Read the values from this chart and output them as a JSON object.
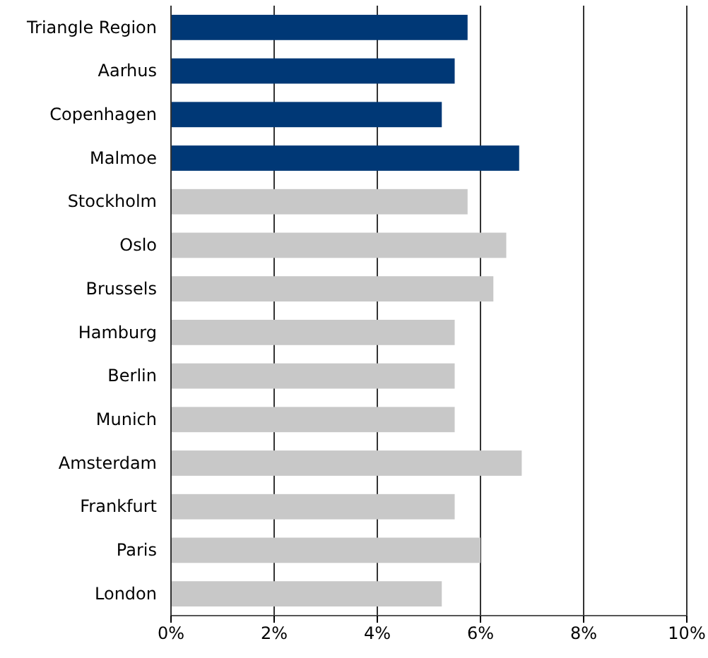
{
  "chart_data": {
    "type": "bar",
    "orientation": "horizontal",
    "categories": [
      "Triangle Region",
      "Aarhus",
      "Copenhagen",
      "Malmoe",
      "Stockholm",
      "Oslo",
      "Brussels",
      "Hamburg",
      "Berlin",
      "Munich",
      "Amsterdam",
      "Frankfurt",
      "Paris",
      "London"
    ],
    "values": [
      5.75,
      5.5,
      5.25,
      6.75,
      5.75,
      6.5,
      6.25,
      5.5,
      5.5,
      5.5,
      6.8,
      5.5,
      6.0,
      5.25
    ],
    "colors": [
      "#003876",
      "#003876",
      "#003876",
      "#003876",
      "#c8c8c8",
      "#c8c8c8",
      "#c8c8c8",
      "#c8c8c8",
      "#c8c8c8",
      "#c8c8c8",
      "#c8c8c8",
      "#c8c8c8",
      "#c8c8c8",
      "#c8c8c8"
    ],
    "xlim": [
      0,
      10
    ],
    "xticks": [
      {
        "value": 0,
        "label": "0%"
      },
      {
        "value": 2,
        "label": "2%"
      },
      {
        "value": 4,
        "label": "4%"
      },
      {
        "value": 6,
        "label": "6%"
      },
      {
        "value": 8,
        "label": "8%"
      },
      {
        "value": 10,
        "label": "10%"
      }
    ],
    "grid": "x"
  }
}
